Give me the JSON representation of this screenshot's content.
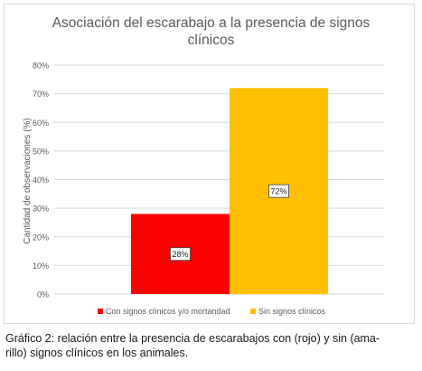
{
  "chart_data": {
    "type": "bar",
    "title": "Asociación del escarabajo a la presencia de signos\nclínicos",
    "ylabel": "Cantidad de observaciones (%)",
    "xlabel": "",
    "ylim": [
      0,
      80
    ],
    "y_ticks": [
      "0%",
      "10%",
      "20%",
      "30%",
      "40%",
      "50%",
      "60%",
      "70%",
      "80%"
    ],
    "y_tick_values": [
      0,
      10,
      20,
      30,
      40,
      50,
      60,
      70,
      80
    ],
    "grid": true,
    "legend_position": "bottom",
    "series": [
      {
        "name": "Con signos clínicos y/o mortandad",
        "values": [
          28
        ],
        "label": "28%",
        "color": "#ff0000"
      },
      {
        "name": "Sin signos clínicos",
        "values": [
          72
        ],
        "label": "72%",
        "color": "#ffc000"
      }
    ]
  },
  "caption": {
    "line1": "Gráfico 2: relación entre la presencia de escarabajos con (rojo) y sin (ama-",
    "line2": "rillo) signos clínicos en los animales."
  }
}
